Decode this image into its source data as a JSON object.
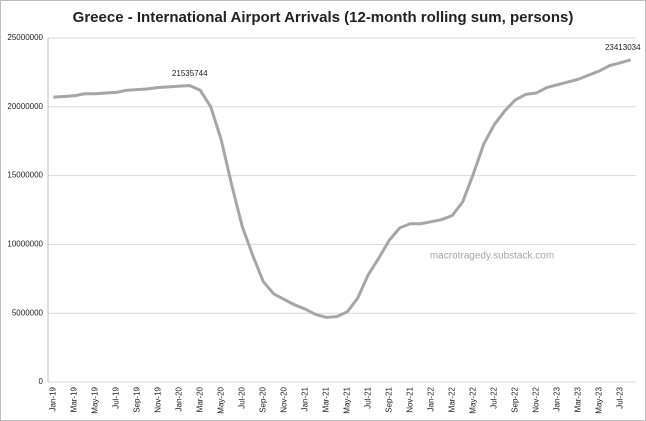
{
  "chart_data": {
    "type": "line",
    "title": "Greece - International Airport Arrivals (12-month rolling sum, persons)",
    "watermark": "macrotragedy.substack.com",
    "categories": [
      "Jan-19",
      null,
      "Mar-19",
      null,
      "May-19",
      null,
      "Jul-19",
      null,
      "Sep-19",
      null,
      "Nov-19",
      null,
      "Jan-20",
      null,
      "Mar-20",
      null,
      "May-20",
      null,
      "Jul-20",
      null,
      "Sep-20",
      null,
      "Nov-20",
      null,
      "Jan-21",
      null,
      "Mar-21",
      null,
      "May-21",
      null,
      "Jul-21",
      null,
      "Sep-21",
      null,
      "Nov-21",
      null,
      "Jan-22",
      null,
      "Mar-22",
      null,
      "May-22",
      null,
      "Jul-22",
      null,
      "Sep-22",
      null,
      "Nov-22",
      null,
      "Jan-23",
      null,
      "Mar-23",
      null,
      "May-23",
      null,
      "Jul-23",
      null
    ],
    "series": [
      {
        "name": "Arrivals",
        "color": "#a6a6a6",
        "values": [
          20700000,
          20750000,
          20800000,
          20950000,
          20950000,
          21000000,
          21050000,
          21200000,
          21250000,
          21300000,
          21400000,
          21450000,
          21500000,
          21535744,
          21200000,
          20000000,
          17600000,
          14300000,
          11300000,
          9200000,
          7300000,
          6400000,
          6000000,
          5600000,
          5300000,
          4900000,
          4700000,
          4750000,
          5100000,
          6100000,
          7800000,
          9000000,
          10300000,
          11200000,
          11500000,
          11500000,
          11650000,
          11800000,
          12100000,
          13100000,
          15100000,
          17300000,
          18700000,
          19700000,
          20500000,
          20900000,
          21000000,
          21400000,
          21600000,
          21800000,
          22000000,
          22300000,
          22600000,
          23000000,
          23200000,
          23413034
        ]
      }
    ],
    "ylim": [
      0,
      25000000
    ],
    "yticks": [
      0,
      5000000,
      10000000,
      15000000,
      20000000,
      25000000
    ],
    "grid": true
  }
}
